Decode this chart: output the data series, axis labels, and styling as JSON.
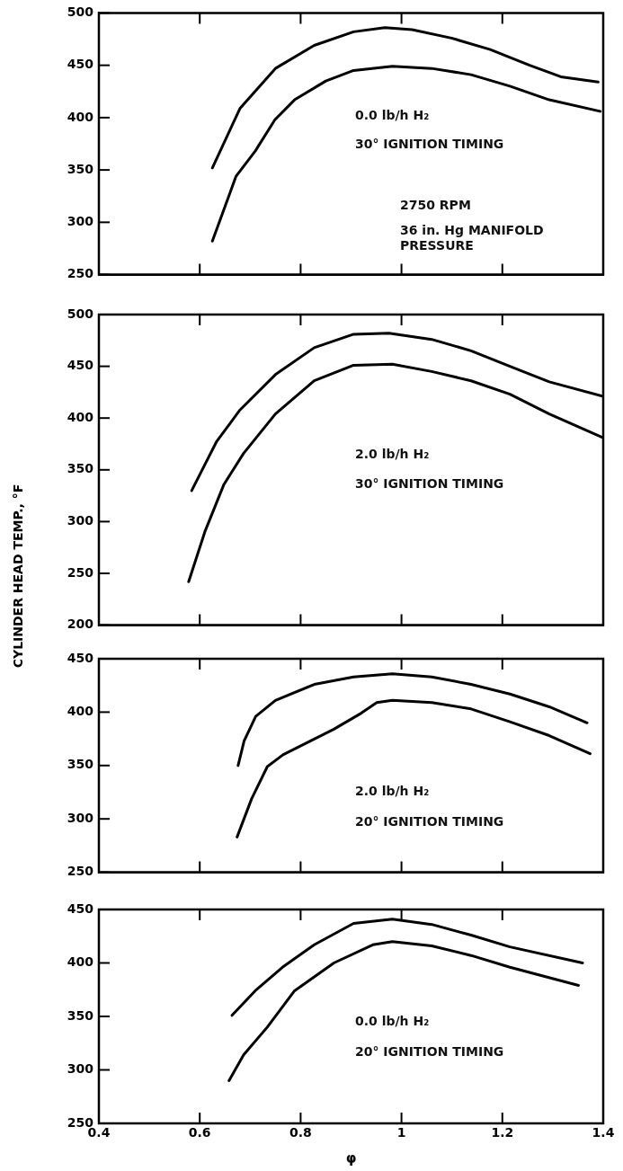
{
  "chart_data": [
    {
      "type": "line",
      "tick_labels": "y",
      "xlim": [
        0.4,
        1.4
      ],
      "ylim": [
        250,
        500
      ],
      "xticks": [
        {
          "value": 0.4,
          "label": null
        },
        {
          "value": 0.6,
          "label": null
        },
        {
          "value": 0.8,
          "label": null
        },
        {
          "value": 1.0,
          "label": null
        },
        {
          "value": 1.2,
          "label": null
        },
        {
          "value": 1.4,
          "label": null
        }
      ],
      "yticks": [
        250,
        300,
        350,
        400,
        450,
        500
      ],
      "marker": "none",
      "grid": false,
      "legend": false,
      "annotations": [
        "0.0 lb/h H₂",
        "30° IGNITION TIMING",
        "2750 RPM",
        "36 in. Hg MANIFOLD PRESSURE"
      ],
      "series": [
        {
          "color": "#000000",
          "x": [
            0.625,
            0.68,
            0.75,
            0.827,
            0.905,
            0.967,
            1.021,
            1.099,
            1.176,
            1.254,
            1.316,
            1.39
          ],
          "values": [
            352,
            409,
            447,
            469,
            482,
            486,
            484,
            476,
            465,
            450,
            439,
            434
          ]
        },
        {
          "color": "#000000",
          "x": [
            0.625,
            0.672,
            0.71,
            0.749,
            0.788,
            0.85,
            0.905,
            0.982,
            1.06,
            1.138,
            1.215,
            1.293,
            1.394
          ],
          "values": [
            282,
            344,
            368,
            398,
            417,
            435,
            445,
            449,
            447,
            441,
            430,
            417,
            406
          ]
        }
      ]
    },
    {
      "type": "line",
      "tick_labels": "y",
      "xlim": [
        0.4,
        1.4
      ],
      "ylim": [
        200,
        500
      ],
      "xticks": [
        {
          "value": 0.4,
          "label": null
        },
        {
          "value": 0.6,
          "label": null
        },
        {
          "value": 0.8,
          "label": null
        },
        {
          "value": 1.0,
          "label": null
        },
        {
          "value": 1.2,
          "label": null
        },
        {
          "value": 1.4,
          "label": null
        }
      ],
      "yticks": [
        200,
        250,
        300,
        350,
        400,
        450,
        500
      ],
      "marker": "none",
      "grid": false,
      "legend": false,
      "ylabel": "CYLINDER HEAD TEMP., °F",
      "annotations": [
        "2.0 lb/h H₂",
        "30° IGNITION TIMING"
      ],
      "series": [
        {
          "color": "#000000",
          "x": [
            0.584,
            0.633,
            0.68,
            0.75,
            0.827,
            0.905,
            0.975,
            1.06,
            1.138,
            1.215,
            1.293,
            1.4
          ],
          "values": [
            330,
            377,
            408,
            442,
            468,
            481,
            482,
            476,
            465,
            450,
            435,
            421
          ]
        },
        {
          "color": "#000000",
          "x": [
            0.578,
            0.61,
            0.648,
            0.687,
            0.75,
            0.827,
            0.905,
            0.982,
            1.06,
            1.138,
            1.215,
            1.293,
            1.4
          ],
          "values": [
            242,
            290,
            336,
            366,
            404,
            436,
            451,
            452,
            445,
            436,
            423,
            404,
            381
          ]
        }
      ]
    },
    {
      "type": "line",
      "tick_labels": "y",
      "xlim": [
        0.4,
        1.4
      ],
      "ylim": [
        250,
        450
      ],
      "xticks": [
        {
          "value": 0.4,
          "label": null
        },
        {
          "value": 0.6,
          "label": null
        },
        {
          "value": 0.8,
          "label": null
        },
        {
          "value": 1.0,
          "label": null
        },
        {
          "value": 1.2,
          "label": null
        },
        {
          "value": 1.4,
          "label": null
        }
      ],
      "yticks": [
        250,
        300,
        350,
        400,
        450
      ],
      "marker": "none",
      "grid": false,
      "legend": false,
      "annotations": [
        "2.0 lb/h H₂",
        "20° IGNITION TIMING"
      ],
      "series": [
        {
          "color": "#000000",
          "x": [
            0.676,
            0.688,
            0.711,
            0.75,
            0.827,
            0.905,
            0.982,
            1.06,
            1.138,
            1.215,
            1.293,
            1.368
          ],
          "values": [
            350,
            373,
            396,
            411,
            426,
            433,
            436,
            433,
            426,
            417,
            405,
            390
          ]
        },
        {
          "color": "#000000",
          "x": [
            0.674,
            0.703,
            0.734,
            0.765,
            0.811,
            0.866,
            0.92,
            0.951,
            0.982,
            1.06,
            1.138,
            1.215,
            1.293,
            1.374
          ],
          "values": [
            283,
            319,
            349,
            360,
            371,
            384,
            399,
            409,
            411,
            409,
            403,
            391,
            378,
            361
          ]
        }
      ]
    },
    {
      "type": "line",
      "xlim": [
        0.4,
        1.4
      ],
      "ylim": [
        250,
        450
      ],
      "xticks": [
        0.4,
        0.6,
        0.8,
        1.0,
        1.2,
        1.4
      ],
      "yticks": [
        250,
        300,
        350,
        400,
        450
      ],
      "marker": "none",
      "grid": false,
      "legend": false,
      "xlabel": "φ",
      "annotations": [
        "0.0 lb/h H₂",
        "20° IGNITION TIMING"
      ],
      "series": [
        {
          "color": "#000000",
          "x": [
            0.664,
            0.71,
            0.764,
            0.827,
            0.905,
            0.982,
            1.06,
            1.138,
            1.215,
            1.359
          ],
          "values": [
            351,
            374,
            396,
            417,
            437,
            441,
            436,
            426,
            415,
            400
          ]
        },
        {
          "color": "#000000",
          "x": [
            0.658,
            0.687,
            0.734,
            0.788,
            0.866,
            0.943,
            0.982,
            1.06,
            1.138,
            1.215,
            1.351
          ],
          "values": [
            290,
            314,
            340,
            374,
            400,
            417,
            420,
            416,
            407,
            396,
            379
          ]
        }
      ]
    }
  ]
}
